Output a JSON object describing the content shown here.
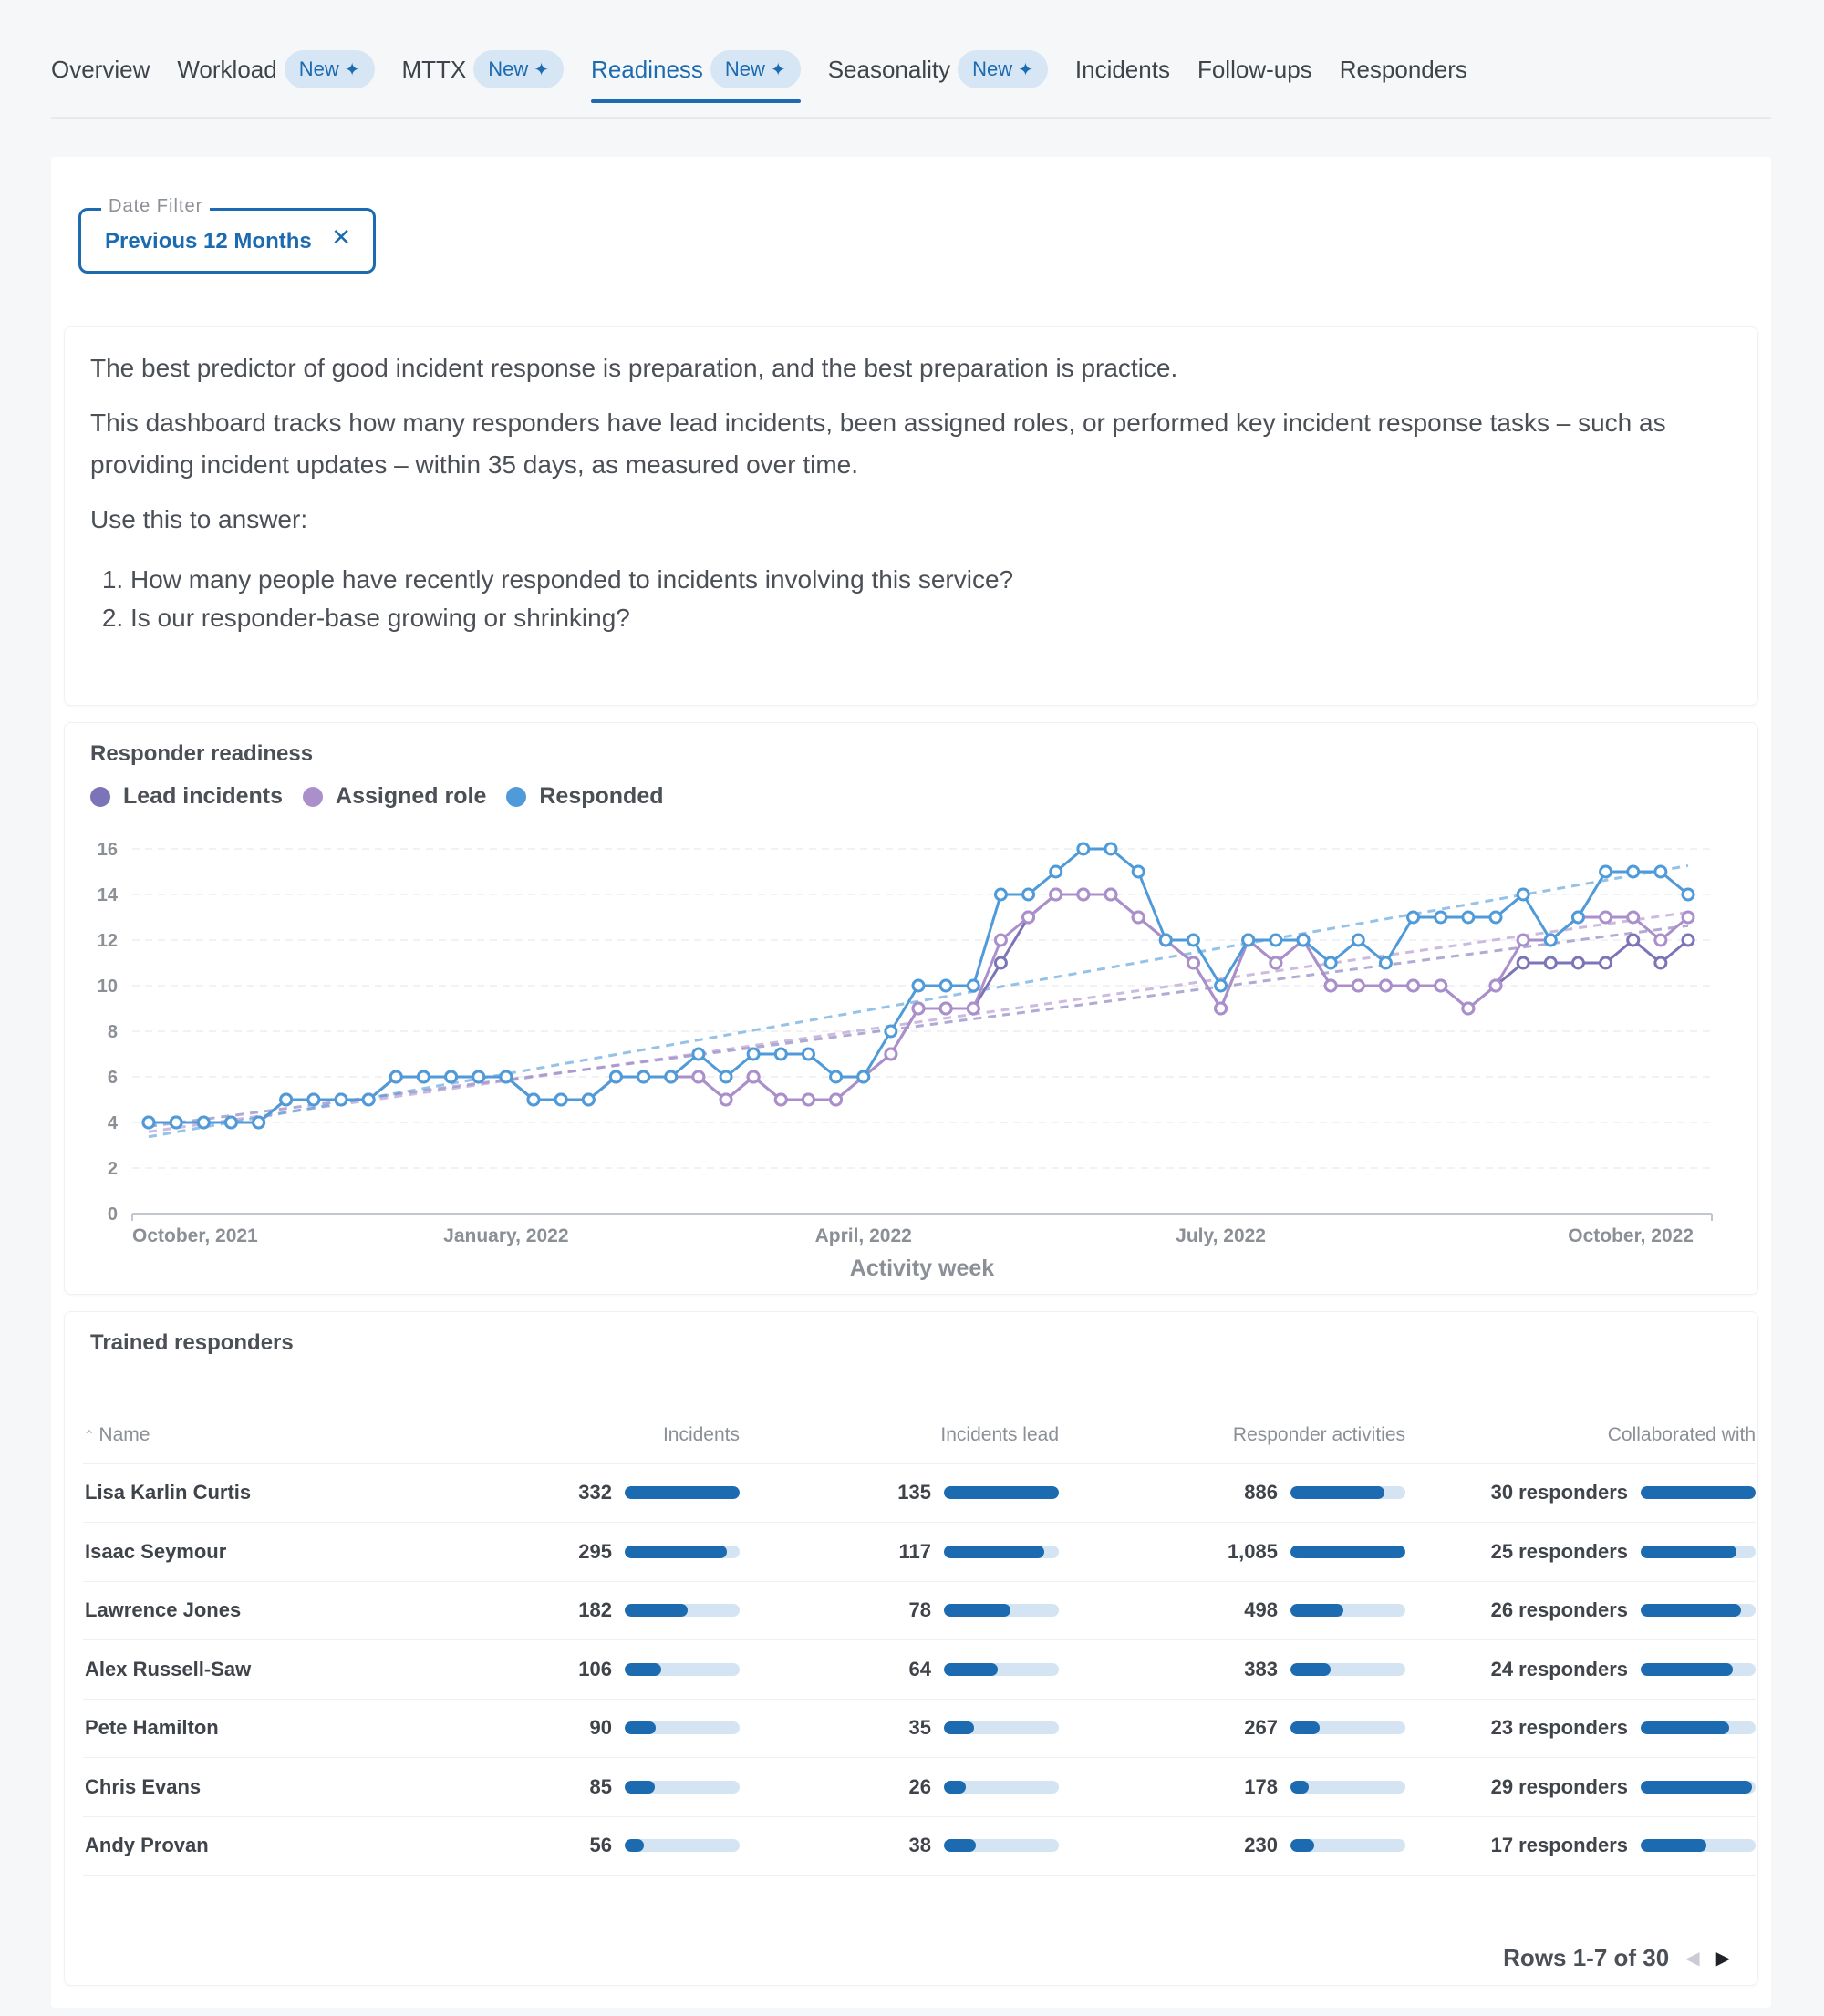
{
  "tabs": [
    {
      "label": "Overview",
      "badge": null,
      "active": false
    },
    {
      "label": "Workload",
      "badge": "New",
      "active": false
    },
    {
      "label": "MTTX",
      "badge": "New",
      "active": false
    },
    {
      "label": "Readiness",
      "badge": "New",
      "active": true
    },
    {
      "label": "Seasonality",
      "badge": "New",
      "active": false
    },
    {
      "label": "Incidents",
      "badge": null,
      "active": false
    },
    {
      "label": "Follow-ups",
      "badge": null,
      "active": false
    },
    {
      "label": "Responders",
      "badge": null,
      "active": false
    }
  ],
  "filter": {
    "label": "Date Filter",
    "value": "Previous 12 Months",
    "clear_icon": "close-icon"
  },
  "intro": {
    "p1": "The best predictor of good incident response is preparation, and the best preparation is practice.",
    "p2": "This dashboard tracks how many responders have lead incidents, been assigned roles, or performed key incident response tasks – such as providing incident updates – within 35 days, as measured over time.",
    "p3": "Use this to answer:",
    "q1": "How many people have recently responded to incidents involving this service?",
    "q2": "Is our responder-base growing or shrinking?"
  },
  "chart_panel": {
    "title": "Responder readiness"
  },
  "chart_data": {
    "type": "line",
    "xlabel": "Activity week",
    "x_ticks": [
      "October, 2021",
      "January, 2022",
      "April, 2022",
      "July, 2022",
      "October, 2022"
    ],
    "x_tick_weeks": [
      0,
      13,
      26,
      39,
      52
    ],
    "ylim": [
      0,
      16
    ],
    "y_ticks": [
      0,
      2,
      4,
      6,
      8,
      10,
      12,
      14,
      16
    ],
    "grid": true,
    "legend_position": "top-left",
    "trendlines": true,
    "series": [
      {
        "name": "Lead incidents",
        "color": "#7b74b8",
        "values": [
          4,
          4,
          4,
          4,
          4,
          5,
          5,
          5,
          5,
          6,
          6,
          6,
          6,
          6,
          5,
          5,
          5,
          6,
          6,
          6,
          6,
          5,
          6,
          5,
          5,
          5,
          6,
          7,
          9,
          9,
          9,
          11,
          13,
          14,
          14,
          14,
          13,
          12,
          11,
          9,
          12,
          11,
          12,
          10,
          10,
          10,
          10,
          10,
          9,
          10,
          11,
          11,
          11,
          11,
          12,
          11,
          12
        ]
      },
      {
        "name": "Assigned role",
        "color": "#ab8fcb",
        "values": [
          4,
          4,
          4,
          4,
          4,
          5,
          5,
          5,
          5,
          6,
          6,
          6,
          6,
          6,
          5,
          5,
          5,
          6,
          6,
          6,
          6,
          5,
          6,
          5,
          5,
          5,
          6,
          7,
          9,
          9,
          9,
          12,
          13,
          14,
          14,
          14,
          13,
          12,
          11,
          9,
          12,
          11,
          12,
          10,
          10,
          10,
          10,
          10,
          9,
          10,
          12,
          12,
          13,
          13,
          13,
          12,
          13
        ]
      },
      {
        "name": "Responded",
        "color": "#4f9ad8",
        "values": [
          4,
          4,
          4,
          4,
          4,
          5,
          5,
          5,
          5,
          6,
          6,
          6,
          6,
          6,
          5,
          5,
          5,
          6,
          6,
          6,
          7,
          6,
          7,
          7,
          7,
          6,
          6,
          8,
          10,
          10,
          10,
          14,
          14,
          15,
          16,
          16,
          15,
          12,
          12,
          10,
          12,
          12,
          12,
          11,
          12,
          11,
          13,
          13,
          13,
          13,
          14,
          12,
          13,
          15,
          15,
          15,
          14
        ]
      }
    ]
  },
  "table": {
    "title": "Trained responders",
    "columns": [
      "Name",
      "Incidents",
      "Incidents lead",
      "Responder activities",
      "Collaborated with"
    ],
    "rows": [
      {
        "name": "Lisa Karlin Curtis",
        "incidents": "332",
        "incidents_pct": 100,
        "lead": "135",
        "lead_pct": 100,
        "activities": "886",
        "activities_pct": 82,
        "collab": "30 responders",
        "collab_pct": 100
      },
      {
        "name": "Isaac Seymour",
        "incidents": "295",
        "incidents_pct": 89,
        "lead": "117",
        "lead_pct": 87,
        "activities": "1,085",
        "activities_pct": 100,
        "collab": "25 responders",
        "collab_pct": 83
      },
      {
        "name": "Lawrence Jones",
        "incidents": "182",
        "incidents_pct": 55,
        "lead": "78",
        "lead_pct": 58,
        "activities": "498",
        "activities_pct": 46,
        "collab": "26 responders",
        "collab_pct": 87
      },
      {
        "name": "Alex Russell-Saw",
        "incidents": "106",
        "incidents_pct": 32,
        "lead": "64",
        "lead_pct": 47,
        "activities": "383",
        "activities_pct": 35,
        "collab": "24 responders",
        "collab_pct": 80
      },
      {
        "name": "Pete Hamilton",
        "incidents": "90",
        "incidents_pct": 27,
        "lead": "35",
        "lead_pct": 26,
        "activities": "267",
        "activities_pct": 25,
        "collab": "23 responders",
        "collab_pct": 77
      },
      {
        "name": "Chris Evans",
        "incidents": "85",
        "incidents_pct": 26,
        "lead": "26",
        "lead_pct": 19,
        "activities": "178",
        "activities_pct": 16,
        "collab": "29 responders",
        "collab_pct": 97
      },
      {
        "name": "Andy Provan",
        "incidents": "56",
        "incidents_pct": 17,
        "lead": "38",
        "lead_pct": 28,
        "activities": "230",
        "activities_pct": 21,
        "collab": "17 responders",
        "collab_pct": 57
      }
    ],
    "pagination": "Rows 1-7 of 30"
  }
}
